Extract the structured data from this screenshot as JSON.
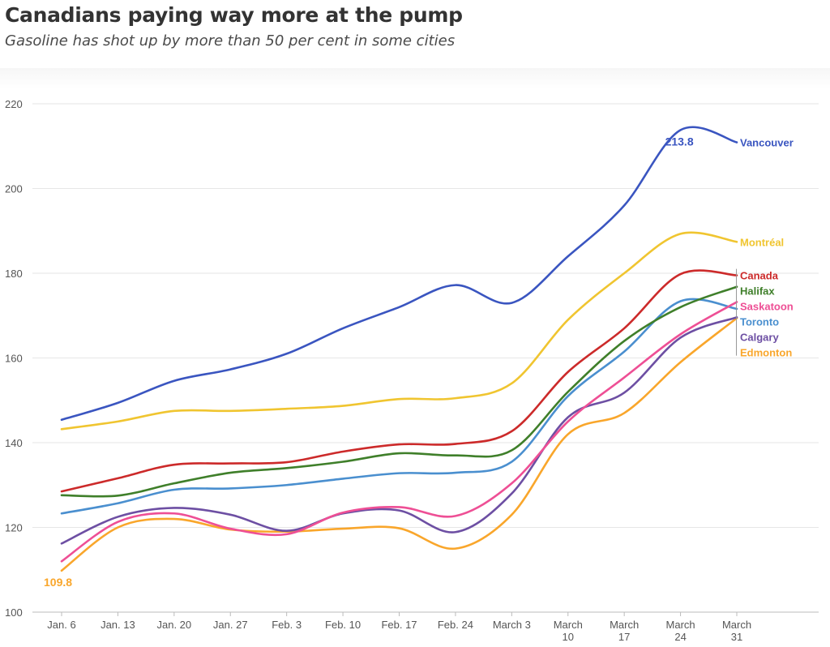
{
  "header": {
    "title": "Canadians paying way more at the pump",
    "subtitle": "Gasoline has shot up by more than 50 per cent in some cities"
  },
  "chart_data": {
    "type": "line",
    "title": "Canadians paying way more at the pump",
    "subtitle": "Gasoline has shot up by more than 50 per cent in some cities",
    "xlabel": "",
    "ylabel": "",
    "categories": [
      "Jan. 6",
      "Jan. 13",
      "Jan. 20",
      "Jan. 27",
      "Feb. 3",
      "Feb. 10",
      "Feb. 17",
      "Feb. 24",
      "March 3",
      "March 10",
      "March 17",
      "March 24",
      "March 31"
    ],
    "ylim": [
      100,
      220
    ],
    "yticks": [
      100,
      120,
      140,
      160,
      180,
      200,
      220
    ],
    "grid": "horizontal",
    "legend": "labels at line ends, right",
    "series": [
      {
        "name": "Vancouver",
        "color": "#3a55c0",
        "values": [
          145.4,
          149.4,
          154.6,
          157.3,
          161.0,
          167.0,
          172.0,
          177.2,
          173.0,
          184.0,
          196.0,
          213.8,
          210.9
        ]
      },
      {
        "name": "Montréal",
        "color": "#f0c530",
        "values": [
          143.2,
          145.0,
          147.5,
          147.5,
          148.0,
          148.7,
          150.3,
          150.5,
          154.0,
          169.0,
          180.0,
          189.3,
          187.4
        ]
      },
      {
        "name": "Canada",
        "color": "#cc2a2a",
        "values": [
          128.5,
          131.6,
          134.8,
          135.1,
          135.4,
          137.9,
          139.6,
          139.7,
          142.7,
          156.7,
          167.0,
          179.8,
          179.5
        ]
      },
      {
        "name": "Halifax",
        "color": "#3f7f2a",
        "values": [
          127.6,
          127.5,
          130.4,
          132.9,
          134.0,
          135.5,
          137.5,
          137.0,
          138.2,
          152.0,
          164.0,
          172.0,
          176.8
        ]
      },
      {
        "name": "Saskatoon",
        "color": "#ee4f95",
        "values": [
          112.0,
          121.3,
          123.3,
          119.7,
          118.4,
          123.5,
          124.8,
          122.7,
          130.4,
          145.0,
          155.4,
          165.6,
          173.2
        ]
      },
      {
        "name": "Toronto",
        "color": "#4a8fcf",
        "values": [
          123.3,
          125.7,
          128.9,
          129.2,
          130.0,
          131.5,
          132.8,
          132.9,
          135.5,
          151.0,
          161.5,
          173.4,
          171.6
        ]
      },
      {
        "name": "Calgary",
        "color": "#6d4fa3",
        "values": [
          116.2,
          122.5,
          124.6,
          123.0,
          119.2,
          123.3,
          124.0,
          118.9,
          128.0,
          146.0,
          151.8,
          164.8,
          169.6
        ]
      },
      {
        "name": "Edmonton",
        "color": "#f9a62b",
        "values": [
          109.8,
          120.0,
          122.0,
          119.5,
          119.0,
          119.7,
          119.8,
          115.0,
          123.0,
          142.0,
          147.0,
          159.0,
          169.4
        ]
      }
    ],
    "annotations": [
      {
        "series": "Vancouver",
        "category": "March 24",
        "text": "213.8"
      },
      {
        "series": "Edmonton",
        "category": "Jan. 6",
        "text": "109.8"
      }
    ]
  }
}
